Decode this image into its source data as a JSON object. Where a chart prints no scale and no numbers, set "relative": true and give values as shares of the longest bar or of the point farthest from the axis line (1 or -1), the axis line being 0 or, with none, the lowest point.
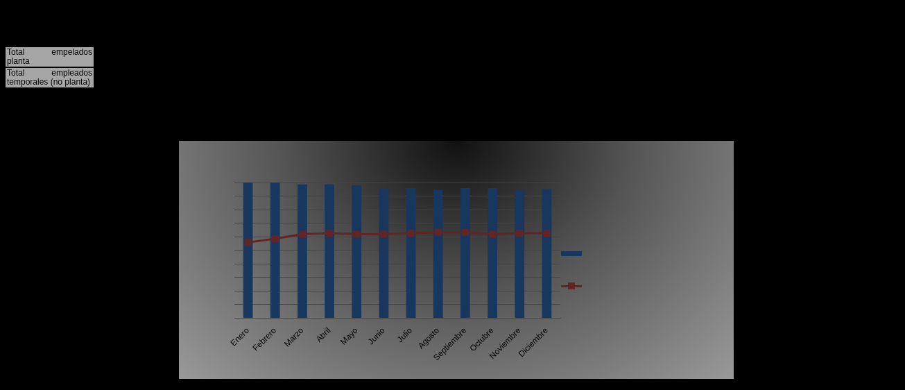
{
  "chart_data": {
    "type": "bar",
    "relative": true,
    "categories": [
      "Enero",
      "Febrero",
      "Marzo",
      "Abril",
      "Mayo",
      "Junio",
      "Julio",
      "Agosto",
      "Septiembre",
      "Octubre",
      "Noviembre",
      "Diciembre"
    ],
    "series": [
      {
        "color": "#17375e",
        "values": [
          1,
          1,
          0.986,
          0.986,
          0.98,
          0.959,
          0.959,
          0.946,
          0.959,
          0.959,
          0.946,
          0.952
        ]
      },
      {
        "type": "line",
        "color": "#632523",
        "values": [
          0.558,
          0.585,
          0.619,
          0.626,
          0.619,
          0.619,
          0.626,
          0.633,
          0.633,
          0.619,
          0.626,
          0.626
        ]
      }
    ],
    "marker": "square",
    "grid": "y",
    "annotations": [
      "Total empelados planta",
      "Total empleados temporales (no planta)"
    ]
  }
}
